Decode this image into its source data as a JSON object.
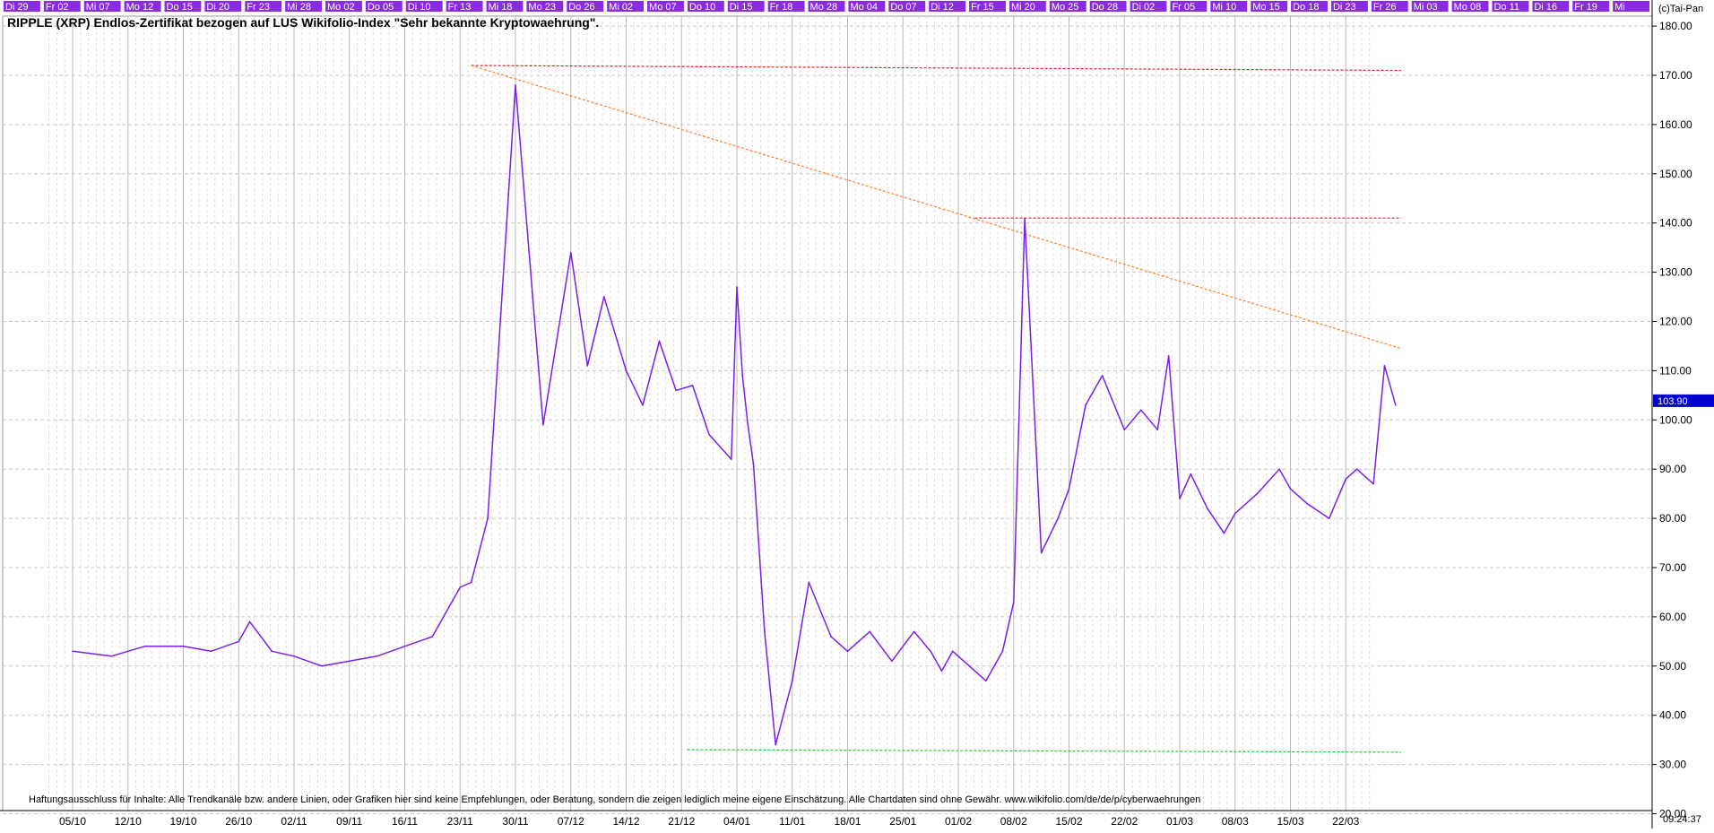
{
  "title": "RIPPLE (XRP) Endlos-Zertifikat bezogen auf LUS Wikifolio-Index \"Sehr bekannte Kryptowaehrung\".",
  "copyright": "(c)Tai-Pan",
  "clock": "09:24:37",
  "disclaimer": "Haftungsausschluss für Inhalte: Alle Trendkanäle bzw. andere Linien, oder Grafiken hier sind keine Empfehlungen, oder Beratung, sondern die zeigen lediglich meine eigene Einschätzung. Alle Chartdaten sind ohne Gewähr.  www.wikifolio.com/de/de/p/cyberwaehrungen",
  "last_price_label": "103.90",
  "colors": {
    "price_line": "#7b1fe8",
    "date_tab": "#8a2be2",
    "last_price_box": "#0000cc",
    "resistance": "#e02020",
    "trendline": "#ff7f2a",
    "support": "#22cc22",
    "grid": "#c8c8c8"
  },
  "chart_data": {
    "type": "line",
    "title": "RIPPLE (XRP) Endlos-Zertifikat bezogen auf LUS Wikifolio-Index \"Sehr bekannte Kryptowaehrung\".",
    "xlabel": "",
    "ylabel": "",
    "y_scale": "linear",
    "grid": true,
    "ylim": [
      20,
      182
    ],
    "y_ticks": [
      "20.00",
      "30.00",
      "40.00",
      "50.00",
      "60.00",
      "70.00",
      "80.00",
      "90.00",
      "100.00",
      "110.00",
      "120.00",
      "130.00",
      "140.00",
      "150.00",
      "160.00",
      "170.00",
      "180.00"
    ],
    "x_tick_labels": [
      "05/10",
      "12/10",
      "19/10",
      "26/10",
      "02/11",
      "09/11",
      "16/11",
      "23/11",
      "30/11",
      "07/12",
      "14/12",
      "21/12",
      "04/01",
      "11/01",
      "18/01",
      "25/01",
      "01/02",
      "08/02",
      "15/02",
      "22/02",
      "01/03",
      "08/03",
      "15/03",
      "22/03"
    ],
    "date_tabs": [
      "Di 29",
      "Fr 02",
      "Mi 07",
      "Mo 12",
      "Do 15",
      "Di 20",
      "Fr 23",
      "Mi 28",
      "Mo 02",
      "Do 05",
      "Di 10",
      "Fr 13",
      "Mi 18",
      "Mo 23",
      "Do 26",
      "Mi 02",
      "Mo 07",
      "Do 10",
      "Di 15",
      "Fr 18",
      "Mo 28",
      "Mo 04",
      "Do 07",
      "Di 12",
      "Fr 15",
      "Mi 20",
      "Mo 25",
      "Do 28",
      "Di 02",
      "Fr 05",
      "Mi 10",
      "Mo 15",
      "Do 18",
      "Di 23",
      "Fr 26",
      "Mi 03",
      "Mo 08",
      "Do 11",
      "Di 16",
      "Fr 19",
      "Mi"
    ],
    "series": [
      {
        "name": "",
        "x": [
          0,
          0.7,
          1.3,
          2,
          2.5,
          3,
          3.2,
          3.6,
          4,
          4.5,
          5,
          5.5,
          6,
          6.5,
          6.8,
          7,
          7.2,
          7.5,
          8,
          8.5,
          9,
          9.3,
          9.6,
          10,
          10.3,
          10.6,
          10.9,
          11.2,
          11.5,
          11.9,
          12,
          12.1,
          12.2,
          12.3,
          12.5,
          12.7,
          13,
          13.3,
          13.7,
          14,
          14.4,
          14.8,
          15.2,
          15.5,
          15.7,
          15.9,
          16.2,
          16.5,
          16.8,
          17,
          17.2,
          17.5,
          17.8,
          18,
          18.3,
          18.6,
          19,
          19.3,
          19.6,
          19.8,
          20,
          20.2,
          20.5,
          20.8,
          21,
          21.4,
          21.8,
          22,
          22.3,
          22.7,
          23,
          23.2,
          23.5,
          23.7,
          23.9
        ],
        "y": [
          53,
          52,
          54,
          54,
          53,
          55,
          59,
          53,
          52,
          50,
          51,
          52,
          54,
          56,
          62,
          66,
          67,
          80,
          168,
          99,
          134,
          111,
          125,
          110,
          103,
          116,
          106,
          107,
          97,
          92,
          127,
          109,
          99,
          91,
          57,
          34,
          47,
          67,
          56,
          53,
          57,
          51,
          57,
          53,
          49,
          53,
          50,
          47,
          53,
          63,
          141,
          73,
          80,
          86,
          103,
          109,
          98,
          102,
          98,
          113,
          84,
          89,
          82,
          77,
          81,
          85,
          90,
          86,
          83,
          80,
          88,
          90,
          87,
          111,
          103
        ]
      }
    ],
    "annotations": [
      {
        "kind": "resistance-line",
        "color": "red",
        "y_start": 172,
        "y_end": 171,
        "x_start": 7.2,
        "x_end": 24
      },
      {
        "kind": "resistance-line",
        "color": "red",
        "y_start": 141,
        "y_end": 141,
        "x_start": 16.3,
        "x_end": 24
      },
      {
        "kind": "downtrend-line",
        "color": "orange",
        "x_start": 7.2,
        "y_start": 172,
        "x_end": 24,
        "y_end": 114.5
      },
      {
        "kind": "support-line",
        "color": "green",
        "y_start": 33,
        "y_end": 32.5,
        "x_start": 11.1,
        "x_end": 24
      }
    ]
  }
}
